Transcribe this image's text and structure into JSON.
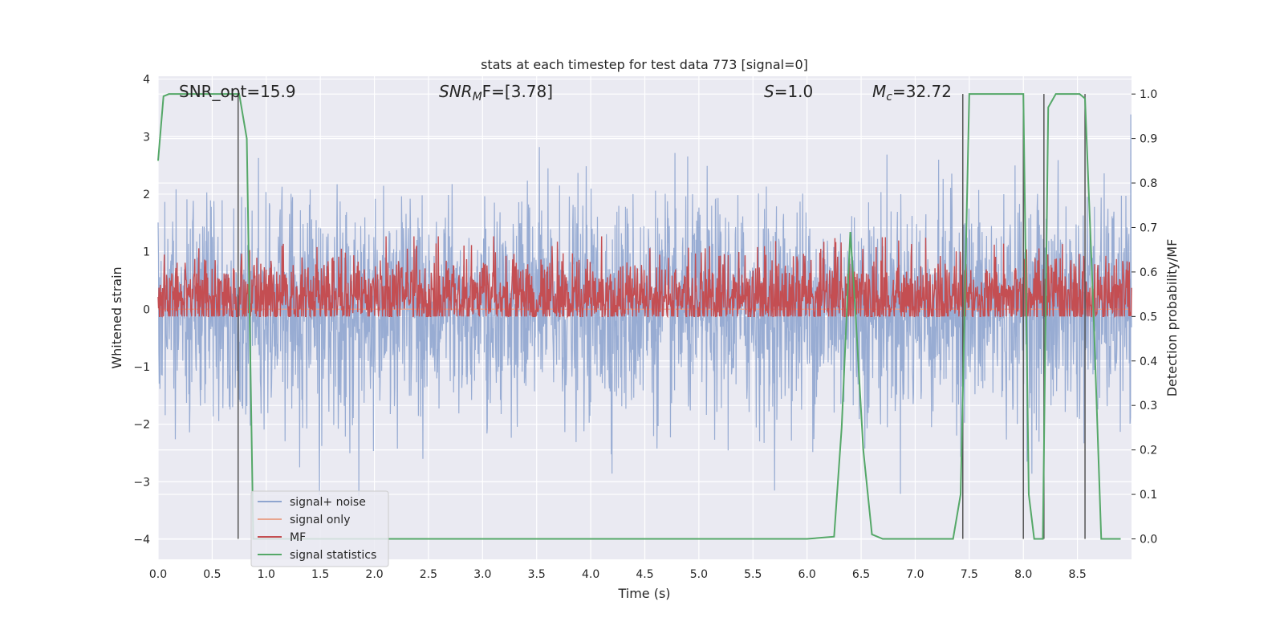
{
  "chart_data": {
    "type": "line",
    "title": "stats at each timestep for test data 773 [signal=0]",
    "xlabel": "Time (s)",
    "ylabel_left": "Whitened strain",
    "ylabel_right": "Detection probability/MF",
    "xlim": [
      0.0,
      9.0
    ],
    "ylim_left": [
      -4.35,
      4.05
    ],
    "ylim_right": [
      -0.046,
      1.04
    ],
    "x_ticks": [
      "0.0",
      "0.5",
      "1.0",
      "1.5",
      "2.0",
      "2.5",
      "3.0",
      "3.5",
      "4.0",
      "4.5",
      "5.0",
      "5.5",
      "6.0",
      "6.5",
      "7.0",
      "7.5",
      "8.0",
      "8.5"
    ],
    "y_ticks_left": [
      "4",
      "3",
      "2",
      "1",
      "0",
      "−1",
      "−2",
      "−3",
      "−4"
    ],
    "y_ticks_right": [
      "1.0",
      "0.9",
      "0.8",
      "0.7",
      "0.6",
      "0.5",
      "0.4",
      "0.3",
      "0.2",
      "0.1",
      "0.0"
    ],
    "grid": true,
    "legend_position": "lower-left",
    "annotations": {
      "snr_opt": "SNR_opt=15.9",
      "snr_mf_label": "SNR",
      "snr_mf_sub": "M",
      "snr_mf_rest": "F=[3.78]",
      "s_label": "S",
      "s_value": "=1.0",
      "mc_label": "M",
      "mc_sub": "c",
      "mc_value": "=32.72"
    },
    "series": [
      {
        "name": "signal+ noise",
        "color": "#8fa5cf",
        "description_only": false,
        "amplitude_range": [
          -3.8,
          3.7
        ]
      },
      {
        "name": "signal only",
        "color": "#e8a58f",
        "values_constant": 0.0
      },
      {
        "name": "MF",
        "color": "#c44e52",
        "range": [
          0.0,
          0.95
        ]
      },
      {
        "name": "signal statistics",
        "color": "#55a868",
        "x": [
          0.0,
          0.05,
          0.1,
          0.2,
          0.35,
          0.5,
          0.65,
          0.75,
          0.82,
          0.88,
          1.0,
          2.0,
          3.0,
          4.0,
          5.0,
          6.0,
          6.25,
          6.32,
          6.4,
          6.45,
          6.52,
          6.6,
          6.7,
          7.0,
          7.35,
          7.42,
          7.5,
          7.6,
          7.7,
          8.0,
          8.05,
          8.1,
          8.18,
          8.23,
          8.3,
          8.4,
          8.52,
          8.57,
          8.65,
          8.72,
          8.9
        ],
        "values": [
          0.85,
          0.995,
          1.0,
          1.0,
          1.0,
          1.0,
          1.0,
          1.0,
          0.9,
          0.0,
          0.0,
          0.0,
          0.0,
          0.0,
          0.0,
          0.0,
          0.005,
          0.25,
          0.69,
          0.5,
          0.2,
          0.01,
          0.0,
          0.0,
          0.0,
          0.1,
          1.0,
          1.0,
          1.0,
          1.0,
          0.1,
          0.0,
          0.0,
          0.97,
          1.0,
          1.0,
          1.0,
          0.99,
          0.5,
          0.0,
          0.0
        ]
      }
    ],
    "vertical_markers": [
      0.74,
      7.44,
      8.0,
      8.19,
      8.57
    ]
  }
}
